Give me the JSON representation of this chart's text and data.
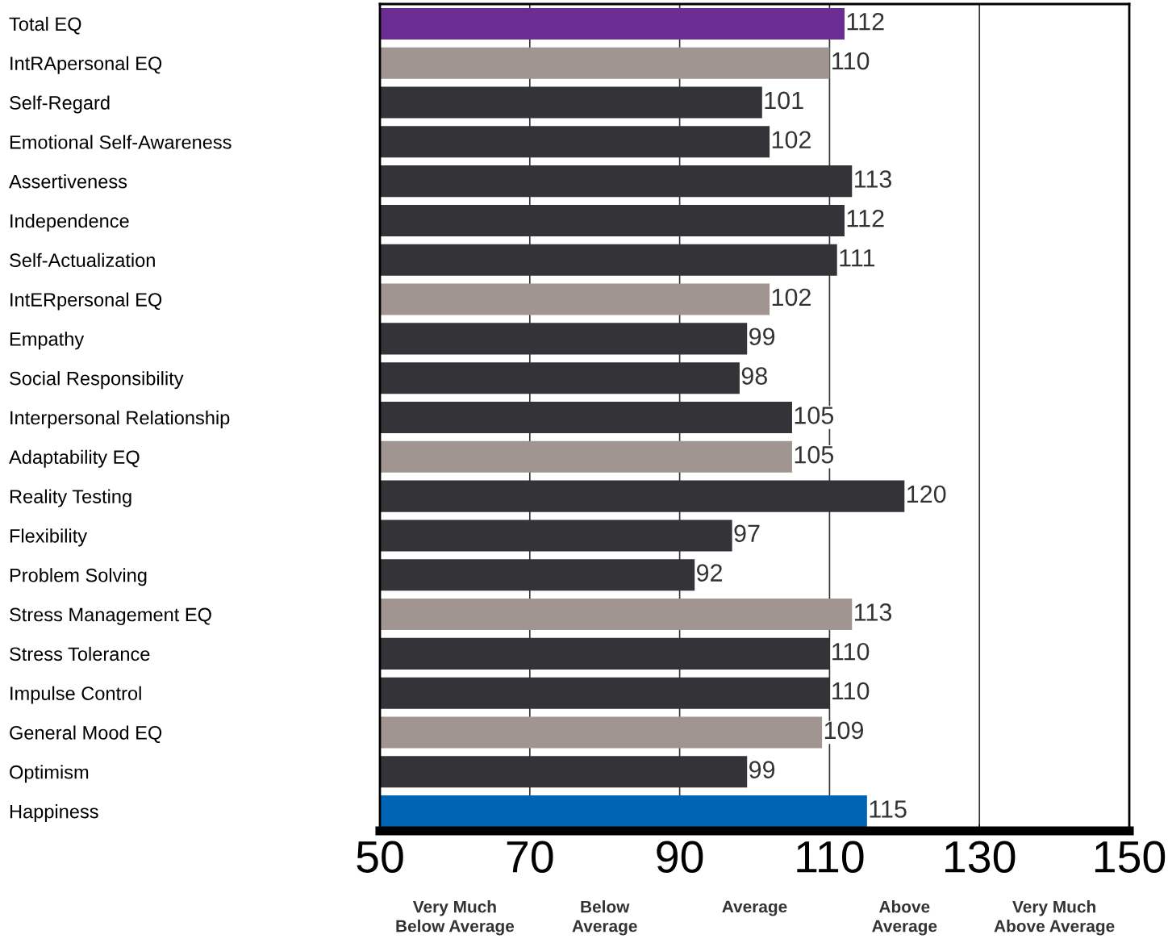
{
  "chart_data": {
    "type": "bar",
    "orientation": "horizontal",
    "categories": [
      "Total EQ",
      "IntRApersonal EQ",
      "Self-Regard",
      "Emotional Self-Awareness",
      "Assertiveness",
      "Independence",
      "Self-Actualization",
      "IntERpersonal EQ",
      "Empathy",
      "Social Responsibility",
      "Interpersonal Relationship",
      "Adaptability EQ",
      "Reality Testing",
      "Flexibility",
      "Problem Solving",
      "Stress Management EQ",
      "Stress Tolerance",
      "Impulse Control",
      "General Mood EQ",
      "Optimism",
      "Happiness"
    ],
    "values": [
      112,
      110,
      101,
      102,
      113,
      112,
      111,
      102,
      99,
      98,
      105,
      105,
      120,
      97,
      92,
      113,
      110,
      110,
      109,
      99,
      115
    ],
    "colors": [
      "#6a2d92",
      "#a09591",
      "#333338",
      "#333338",
      "#333338",
      "#333338",
      "#333338",
      "#a09591",
      "#333338",
      "#333338",
      "#333338",
      "#a09591",
      "#333338",
      "#333338",
      "#333338",
      "#a09591",
      "#333338",
      "#333338",
      "#a09591",
      "#333338",
      "#0064b4"
    ],
    "xlim": [
      50,
      150
    ],
    "xticks": [
      50,
      70,
      90,
      110,
      130,
      150
    ],
    "grid": "x",
    "data_labels": true,
    "annotations": [
      "Very Much\nBelow Average",
      "Below\nAverage",
      "Average",
      "Above\nAverage",
      "Very Much\nAbove Average"
    ]
  }
}
